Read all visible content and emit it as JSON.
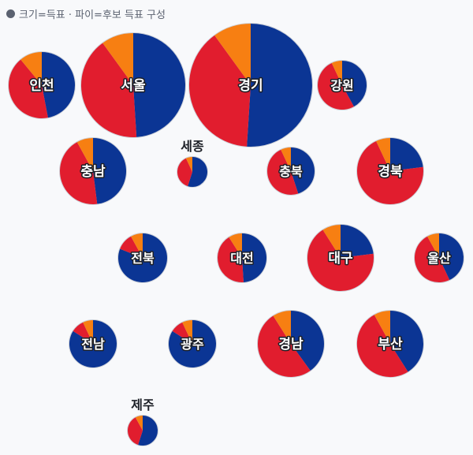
{
  "legend": {
    "text": "크기=득표 · 파이=후보 득표 구성",
    "marker_icon": "circle-dot-icon"
  },
  "colors": {
    "blue": "#0b3594",
    "red": "#e11d2e",
    "orange": "#f77f12",
    "outline": "#cfd3da"
  },
  "chart_data": {
    "type": "pie",
    "encoding": "size=votes, slices=candidate vote share",
    "slice_order": [
      "blue",
      "red",
      "orange"
    ],
    "regions": [
      {
        "name": "서울",
        "shares": [
          0.49,
          0.41,
          0.1
        ]
      },
      {
        "name": "경기",
        "shares": [
          0.51,
          0.39,
          0.1
        ]
      },
      {
        "name": "인천",
        "shares": [
          0.47,
          0.42,
          0.11
        ]
      },
      {
        "name": "강원",
        "shares": [
          0.42,
          0.51,
          0.07
        ]
      },
      {
        "name": "충남",
        "shares": [
          0.48,
          0.44,
          0.08
        ]
      },
      {
        "name": "세종",
        "shares": [
          0.55,
          0.38,
          0.07
        ]
      },
      {
        "name": "충북",
        "shares": [
          0.45,
          0.48,
          0.07
        ]
      },
      {
        "name": "경북",
        "shares": [
          0.23,
          0.7,
          0.07
        ]
      },
      {
        "name": "전북",
        "shares": [
          0.81,
          0.11,
          0.08
        ]
      },
      {
        "name": "대전",
        "shares": [
          0.49,
          0.42,
          0.09
        ]
      },
      {
        "name": "대구",
        "shares": [
          0.23,
          0.68,
          0.09
        ]
      },
      {
        "name": "울산",
        "shares": [
          0.43,
          0.49,
          0.08
        ]
      },
      {
        "name": "전남",
        "shares": [
          0.84,
          0.09,
          0.07
        ]
      },
      {
        "name": "광주",
        "shares": [
          0.84,
          0.09,
          0.07
        ]
      },
      {
        "name": "경남",
        "shares": [
          0.4,
          0.51,
          0.09
        ]
      },
      {
        "name": "부산",
        "shares": [
          0.41,
          0.51,
          0.08
        ]
      },
      {
        "name": "제주",
        "shares": [
          0.55,
          0.37,
          0.08
        ]
      }
    ]
  }
}
